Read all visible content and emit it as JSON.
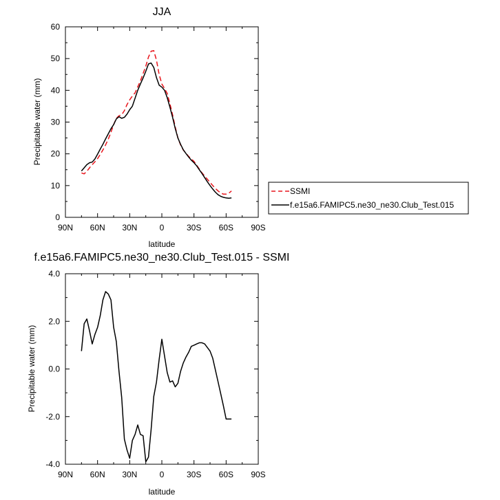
{
  "chart_data": [
    {
      "type": "line",
      "title": "JJA",
      "xlabel": "latitude",
      "ylabel": "Precipitable water (mm)",
      "xlim": [
        90,
        -90
      ],
      "ylim": [
        0,
        60
      ],
      "x_ticks": [
        90,
        60,
        30,
        0,
        -30,
        -60,
        -90
      ],
      "x_tick_labels": [
        "90N",
        "60N",
        "30N",
        "0",
        "30S",
        "60S",
        "90S"
      ],
      "y_ticks": [
        0,
        10,
        20,
        30,
        40,
        50,
        60
      ],
      "y_tick_labels": [
        "0",
        "10",
        "20",
        "30",
        "40",
        "50",
        "60"
      ],
      "legend_position": "right",
      "series": [
        {
          "name": "SSMI",
          "color": "#e8141b",
          "dash": "dashed",
          "x": [
            75,
            72.5,
            70,
            67.5,
            65,
            62.5,
            60,
            57.5,
            55,
            52.5,
            50,
            47.5,
            45,
            42.5,
            40,
            37.5,
            35,
            32.5,
            30,
            27.5,
            25,
            22.5,
            20,
            17.5,
            15,
            12.5,
            10,
            7.5,
            5,
            2.5,
            0,
            -2.5,
            -5,
            -7.5,
            -10,
            -12.5,
            -15,
            -17.5,
            -20,
            -22.5,
            -25,
            -27.5,
            -30,
            -32.5,
            -35,
            -37.5,
            -40,
            -42.5,
            -45,
            -47.5,
            -50,
            -52.5,
            -55,
            -57.5,
            -60,
            -62.5,
            -65
          ],
          "y": [
            14.0,
            13.7,
            14.5,
            15.6,
            16.6,
            17.5,
            18.5,
            19.8,
            21.2,
            22.8,
            24.6,
            26.8,
            29.2,
            31.2,
            32.0,
            32.3,
            33.6,
            35.5,
            37.0,
            38.2,
            39.2,
            41.1,
            43.0,
            45.3,
            47.6,
            50.5,
            52.3,
            52.5,
            49.5,
            45.0,
            42.0,
            40.6,
            39.0,
            35.8,
            32.3,
            28.5,
            25.0,
            22.8,
            21.2,
            20.2,
            19.2,
            18.4,
            17.6,
            16.4,
            15.2,
            14.0,
            13.0,
            12.0,
            11.0,
            10.0,
            9.1,
            8.3,
            7.7,
            7.3,
            7.3,
            7.6,
            8.3
          ]
        },
        {
          "name": "f.e15a6.FAMIPC5.ne30_ne30.Club_Test.015",
          "color": "#000000",
          "dash": "solid",
          "x": [
            75,
            72.5,
            70,
            67.5,
            65,
            62.5,
            60,
            57.5,
            55,
            52.5,
            50,
            47.5,
            45,
            42.5,
            40,
            37.5,
            35,
            32.5,
            30,
            27.5,
            25,
            22.5,
            20,
            17.5,
            15,
            12.5,
            10,
            7.5,
            5,
            2.5,
            0,
            -2.5,
            -5,
            -7.5,
            -10,
            -12.5,
            -15,
            -17.5,
            -20,
            -22.5,
            -25,
            -27.5,
            -30,
            -32.5,
            -35,
            -37.5,
            -40,
            -42.5,
            -45,
            -47.5,
            -50,
            -52.5,
            -55,
            -57.5,
            -60,
            -62.5,
            -65
          ],
          "y": [
            14.6,
            15.6,
            16.6,
            17.2,
            17.4,
            18.4,
            19.9,
            21.5,
            23.0,
            24.7,
            26.3,
            27.9,
            29.2,
            31.0,
            31.7,
            31.2,
            31.5,
            32.5,
            33.9,
            35.0,
            37.5,
            40.0,
            42.0,
            43.9,
            46.0,
            48.3,
            48.6,
            47.2,
            44.0,
            41.6,
            41.0,
            40.0,
            37.7,
            34.7,
            31.5,
            28.0,
            25.0,
            23.0,
            21.3,
            20.1,
            19.0,
            18.0,
            17.2,
            16.2,
            15.0,
            13.8,
            12.5,
            11.2,
            10.0,
            8.9,
            7.9,
            7.1,
            6.6,
            6.3,
            6.1,
            6.0,
            6.1
          ]
        }
      ]
    },
    {
      "type": "line",
      "title": "f.e15a6.FAMIPC5.ne30_ne30.Club_Test.015 - SSMI",
      "xlabel": "latitude",
      "ylabel": "Precipitable water (mm)",
      "xlim": [
        90,
        -90
      ],
      "ylim": [
        -4,
        4
      ],
      "x_ticks": [
        90,
        60,
        30,
        0,
        -30,
        -60,
        -90
      ],
      "x_tick_labels": [
        "90N",
        "60N",
        "30N",
        "0",
        "30S",
        "60S",
        "90S"
      ],
      "y_ticks": [
        -4,
        -2,
        0,
        2,
        4
      ],
      "y_tick_labels": [
        "-4.0",
        "-2.0",
        "0.0",
        "2.0",
        "4.0"
      ],
      "series": [
        {
          "color": "#000000",
          "dash": "solid",
          "x": [
            75,
            72.5,
            70,
            67.5,
            65,
            62.5,
            60,
            57.5,
            55,
            52.5,
            50,
            47.5,
            45,
            42.5,
            40,
            37.5,
            35,
            32.5,
            30,
            27.5,
            25,
            22.5,
            20,
            17.5,
            15,
            12.5,
            10,
            7.5,
            5,
            2.5,
            0,
            -2.5,
            -5,
            -7.5,
            -10,
            -12.5,
            -15,
            -17.5,
            -20,
            -22.5,
            -25,
            -27.5,
            -30,
            -32.5,
            -35,
            -37.5,
            -40,
            -42.5,
            -45,
            -47.5,
            -50,
            -52.5,
            -55,
            -57.5,
            -60,
            -62.5,
            -65
          ],
          "y": [
            0.75,
            1.9,
            2.1,
            1.6,
            1.05,
            1.45,
            1.75,
            2.25,
            2.9,
            3.25,
            3.15,
            2.9,
            1.75,
            1.15,
            -0.1,
            -1.2,
            -2.95,
            -3.4,
            -3.75,
            -3.0,
            -2.75,
            -2.35,
            -2.75,
            -2.8,
            -3.9,
            -3.7,
            -2.55,
            -1.15,
            -0.55,
            0.4,
            1.25,
            0.55,
            -0.15,
            -0.55,
            -0.5,
            -0.75,
            -0.6,
            -0.1,
            0.25,
            0.5,
            0.7,
            0.95,
            1.0,
            1.05,
            1.1,
            1.1,
            1.05,
            0.9,
            0.75,
            0.45,
            -0.05,
            -0.55,
            -1.05,
            -1.55,
            -2.1,
            -2.1,
            -2.1
          ]
        }
      ]
    }
  ]
}
